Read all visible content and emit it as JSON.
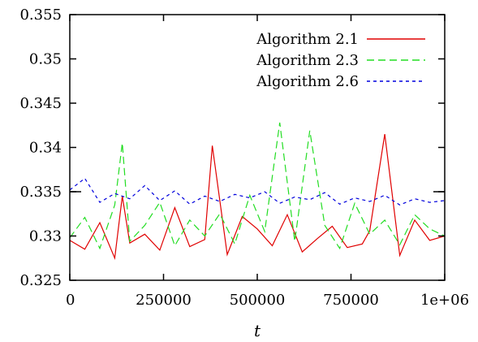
{
  "chart_data": {
    "type": "line",
    "title": "",
    "xlabel": "t",
    "ylabel": "",
    "xlim": [
      0,
      1000000
    ],
    "ylim": [
      0.325,
      0.355
    ],
    "xticks": [
      {
        "value": 0,
        "label": "0"
      },
      {
        "value": 250000,
        "label": "250000"
      },
      {
        "value": 500000,
        "label": "500000"
      },
      {
        "value": 750000,
        "label": "750000"
      },
      {
        "value": 1000000,
        "label": "1e+06"
      }
    ],
    "yticks": [
      {
        "value": 0.325,
        "label": "0.325"
      },
      {
        "value": 0.33,
        "label": "0.33"
      },
      {
        "value": 0.335,
        "label": "0.335"
      },
      {
        "value": 0.34,
        "label": "0.34"
      },
      {
        "value": 0.345,
        "label": "0.345"
      },
      {
        "value": 0.35,
        "label": "0.35"
      },
      {
        "value": 0.355,
        "label": "0.355"
      }
    ],
    "reference_line": 0.335,
    "grid": false,
    "legend_position": "top-right",
    "series": [
      {
        "name": "Algorithm 2.1",
        "color": "#e00000",
        "dash": "solid",
        "x": [
          0,
          40000,
          80000,
          120000,
          140000,
          160000,
          200000,
          240000,
          280000,
          320000,
          360000,
          380000,
          420000,
          460000,
          500000,
          540000,
          580000,
          620000,
          660000,
          700000,
          740000,
          780000,
          800000,
          840000,
          880000,
          920000,
          960000,
          1000000
        ],
        "y": [
          0.3295,
          0.3285,
          0.3315,
          0.3275,
          0.3345,
          0.3292,
          0.3302,
          0.3284,
          0.3332,
          0.3288,
          0.3296,
          0.3402,
          0.3279,
          0.3322,
          0.3308,
          0.3289,
          0.3324,
          0.3282,
          0.3297,
          0.3311,
          0.3287,
          0.3291,
          0.3306,
          0.3415,
          0.3278,
          0.3318,
          0.3295,
          0.33
        ]
      },
      {
        "name": "Algorithm 2.3",
        "color": "#22dd22",
        "dash": "dashed",
        "x": [
          0,
          40000,
          80000,
          120000,
          140000,
          160000,
          200000,
          240000,
          280000,
          320000,
          360000,
          400000,
          440000,
          480000,
          520000,
          560000,
          600000,
          640000,
          680000,
          720000,
          760000,
          800000,
          840000,
          880000,
          920000,
          960000,
          1000000
        ],
        "y": [
          0.3298,
          0.3321,
          0.3286,
          0.3335,
          0.3405,
          0.3294,
          0.3312,
          0.3338,
          0.3289,
          0.3318,
          0.33,
          0.3325,
          0.3291,
          0.3346,
          0.3305,
          0.3428,
          0.3294,
          0.3419,
          0.3312,
          0.3286,
          0.3337,
          0.3302,
          0.3318,
          0.329,
          0.3324,
          0.3308,
          0.33
        ]
      },
      {
        "name": "Algorithm 2.6",
        "color": "#0000dd",
        "dash": "dotted",
        "x": [
          0,
          40000,
          80000,
          120000,
          160000,
          200000,
          240000,
          280000,
          320000,
          360000,
          400000,
          440000,
          480000,
          520000,
          560000,
          600000,
          640000,
          680000,
          720000,
          760000,
          800000,
          840000,
          880000,
          920000,
          960000,
          1000000
        ],
        "y": [
          0.3352,
          0.3365,
          0.3338,
          0.3348,
          0.3342,
          0.3357,
          0.334,
          0.3351,
          0.3336,
          0.3345,
          0.3339,
          0.3347,
          0.3343,
          0.335,
          0.3337,
          0.3344,
          0.3341,
          0.3349,
          0.3336,
          0.3343,
          0.3339,
          0.3346,
          0.3335,
          0.3342,
          0.3338,
          0.334
        ]
      }
    ]
  }
}
